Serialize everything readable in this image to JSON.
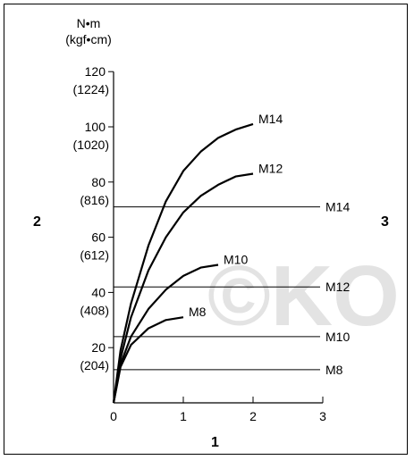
{
  "chart_data": {
    "type": "line",
    "y_unit_line1": "N•m",
    "y_unit_line2": "(kgf•cm)",
    "y_ticks": [
      {
        "value": 20,
        "label": "20",
        "sub": "(204)"
      },
      {
        "value": 40,
        "label": "40",
        "sub": "(408)"
      },
      {
        "value": 60,
        "label": "60",
        "sub": "(612)"
      },
      {
        "value": 80,
        "label": "80",
        "sub": "(816)"
      },
      {
        "value": 100,
        "label": "100",
        "sub": "(1020)"
      },
      {
        "value": 120,
        "label": "120",
        "sub": "(1224)"
      }
    ],
    "x_ticks": [
      {
        "value": 0,
        "label": "0"
      },
      {
        "value": 1,
        "label": "1"
      },
      {
        "value": 2,
        "label": "2"
      },
      {
        "value": 3,
        "label": "3"
      }
    ],
    "xlim": [
      0,
      3
    ],
    "ylim": [
      0,
      120
    ],
    "curves": [
      {
        "name": "M14",
        "points": [
          [
            0,
            0
          ],
          [
            0.1,
            19
          ],
          [
            0.25,
            36
          ],
          [
            0.5,
            57
          ],
          [
            0.75,
            73
          ],
          [
            1.0,
            84
          ],
          [
            1.25,
            91
          ],
          [
            1.5,
            96
          ],
          [
            1.75,
            99
          ],
          [
            2.0,
            101
          ]
        ]
      },
      {
        "name": "M12",
        "points": [
          [
            0,
            0
          ],
          [
            0.1,
            16
          ],
          [
            0.25,
            31
          ],
          [
            0.5,
            48
          ],
          [
            0.75,
            60
          ],
          [
            1.0,
            69
          ],
          [
            1.25,
            75
          ],
          [
            1.5,
            79
          ],
          [
            1.75,
            82
          ],
          [
            2.0,
            83
          ]
        ]
      },
      {
        "name": "M10",
        "points": [
          [
            0,
            0
          ],
          [
            0.1,
            14
          ],
          [
            0.25,
            24
          ],
          [
            0.5,
            34
          ],
          [
            0.75,
            41
          ],
          [
            1.0,
            46
          ],
          [
            1.25,
            49
          ],
          [
            1.5,
            50
          ]
        ]
      },
      {
        "name": "M8",
        "points": [
          [
            0,
            0
          ],
          [
            0.1,
            13
          ],
          [
            0.25,
            21
          ],
          [
            0.5,
            27
          ],
          [
            0.75,
            30
          ],
          [
            1.0,
            31
          ]
        ]
      }
    ],
    "limits": [
      {
        "name": "M14",
        "value": 71
      },
      {
        "name": "M12",
        "value": 42
      },
      {
        "name": "M10",
        "value": 24
      },
      {
        "name": "M8",
        "value": 12
      }
    ],
    "callouts": {
      "left": "2",
      "right": "3",
      "bottom": "1"
    },
    "watermark": "©KO"
  }
}
